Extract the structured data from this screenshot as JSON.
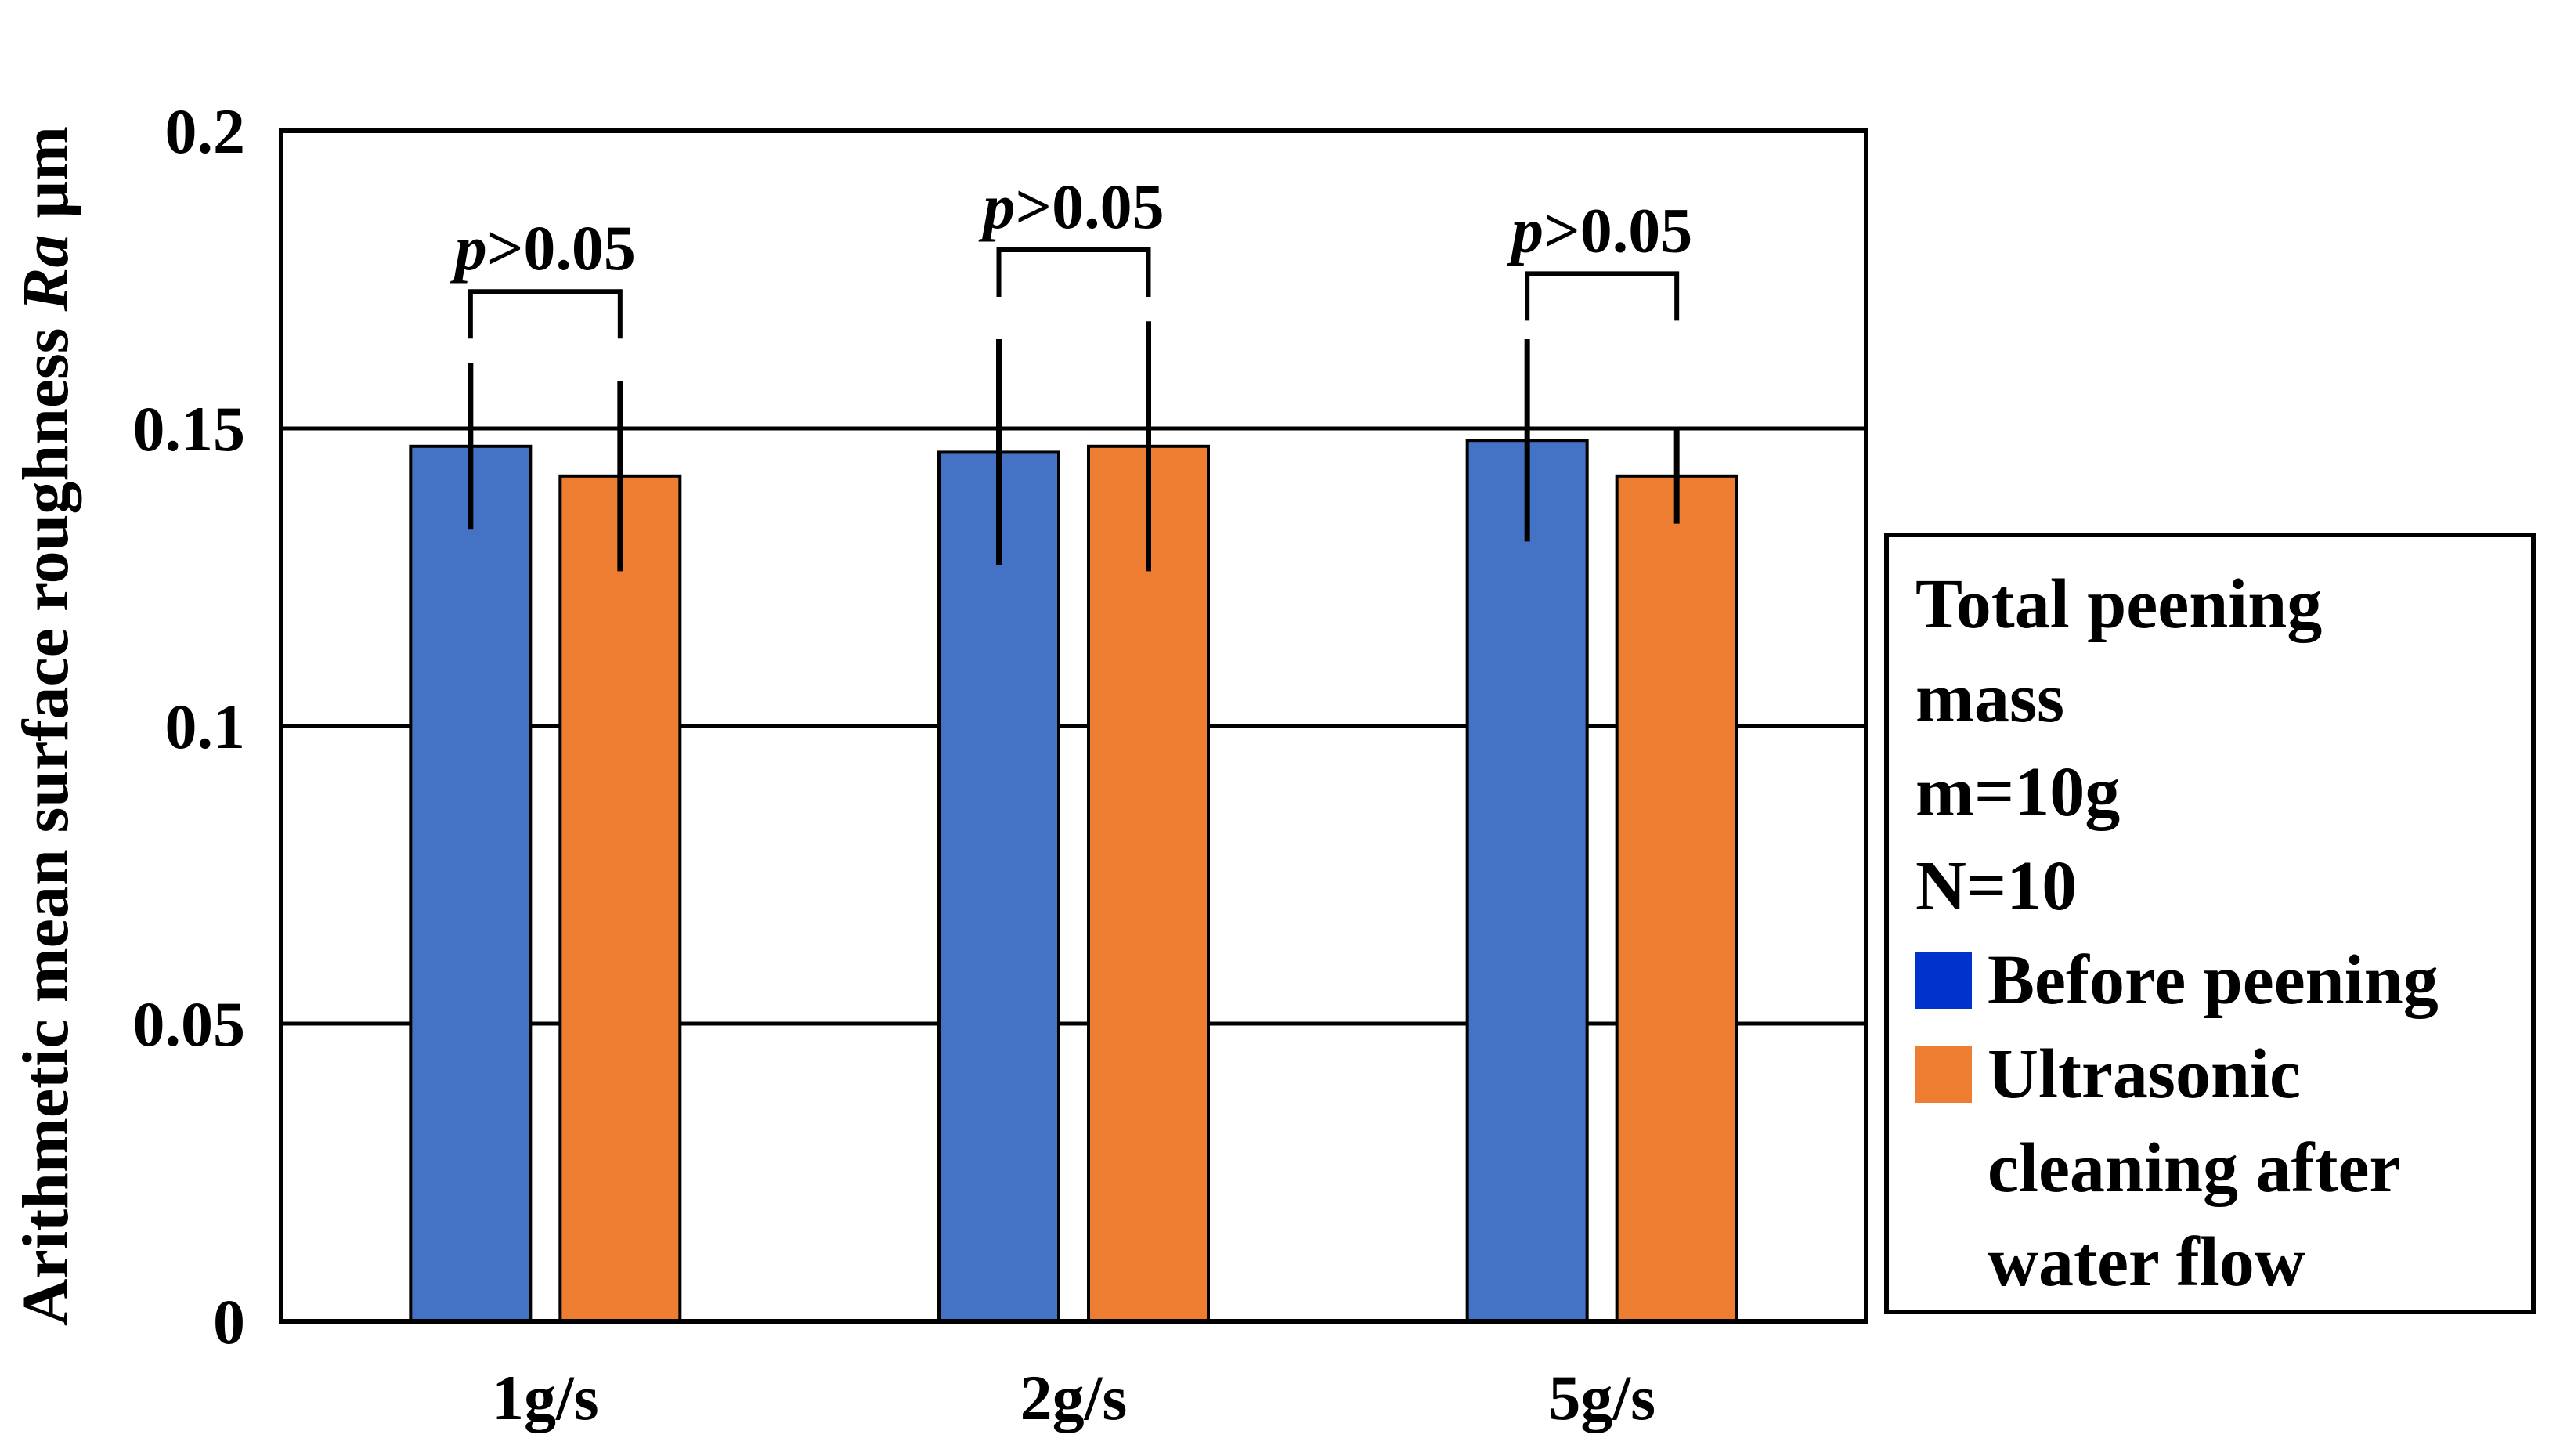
{
  "chart_data": {
    "type": "bar",
    "ylabel": "Arithmetic mean surface roughness",
    "ylabel_italic": "Ra",
    "ylabel_unit": "μm",
    "ylim": [
      0,
      0.2
    ],
    "yticks": [
      0,
      0.05,
      0.1,
      0.15,
      0.2
    ],
    "ytick_labels": [
      "0",
      "0.05",
      "0.1",
      "0.15",
      "0.2"
    ],
    "grid": true,
    "categories": [
      "1g/s",
      "2g/s",
      "5g/s"
    ],
    "series": [
      {
        "name": "Before peening",
        "color": "#4472c4",
        "legend_color": "#0033cc",
        "values": [
          0.147,
          0.146,
          0.148
        ],
        "error": [
          0.014,
          0.019,
          0.017
        ]
      },
      {
        "name": "Ultrasonic cleaning after water flow",
        "color": "#ed7d31",
        "legend_color": "#ed7d31",
        "values": [
          0.142,
          0.147,
          0.142
        ],
        "error": [
          0.016,
          0.021,
          0.008
        ]
      }
    ],
    "annotations": [
      {
        "category": "1g/s",
        "label_italic": "p",
        "label_rest": ">0.05",
        "level": 0.173
      },
      {
        "category": "2g/s",
        "label_italic": "p",
        "label_rest": ">0.05",
        "level": 0.18
      },
      {
        "category": "5g/s",
        "label_italic": "p",
        "label_rest": ">0.05",
        "level": 0.176
      }
    ],
    "legend": {
      "placement": "right",
      "header_lines": [
        "Total peening",
        "mass",
        "m=10g",
        "N=10"
      ],
      "entries": [
        {
          "label_lines": [
            "Before peening"
          ]
        },
        {
          "label_lines": [
            "Ultrasonic",
            "cleaning after",
            "water flow"
          ]
        }
      ]
    }
  }
}
